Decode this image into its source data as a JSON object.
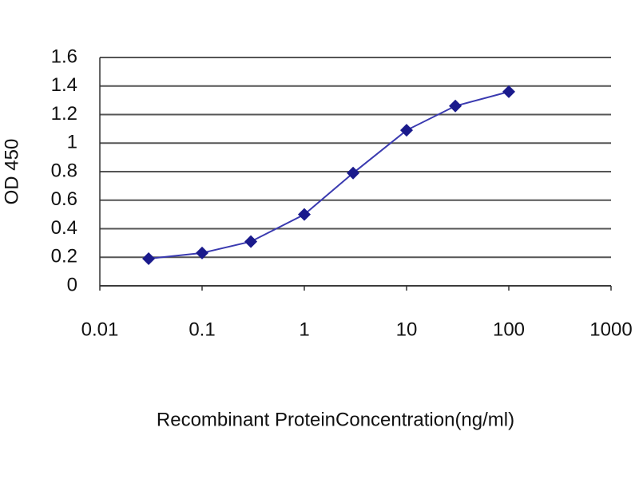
{
  "chart_data": {
    "type": "line",
    "x_label": "Recombinant ProteinConcentration(ng/ml)",
    "y_label": "OD 450",
    "x": [
      0.03,
      0.1,
      0.3,
      1,
      3,
      10,
      30,
      100
    ],
    "values": [
      0.19,
      0.23,
      0.31,
      0.5,
      0.79,
      1.09,
      1.26,
      1.36
    ],
    "color": "#1a1a8c",
    "line_color": "#3a3ab0",
    "xscale": "log",
    "xlim": [
      0.01,
      1000
    ],
    "xticks": [
      0.01,
      0.1,
      1,
      10,
      100,
      1000
    ],
    "ylim": [
      0,
      1.6
    ],
    "yticks": [
      0,
      0.2,
      0.4,
      0.6,
      0.8,
      1,
      1.2,
      1.4,
      1.6
    ],
    "grid": true
  }
}
